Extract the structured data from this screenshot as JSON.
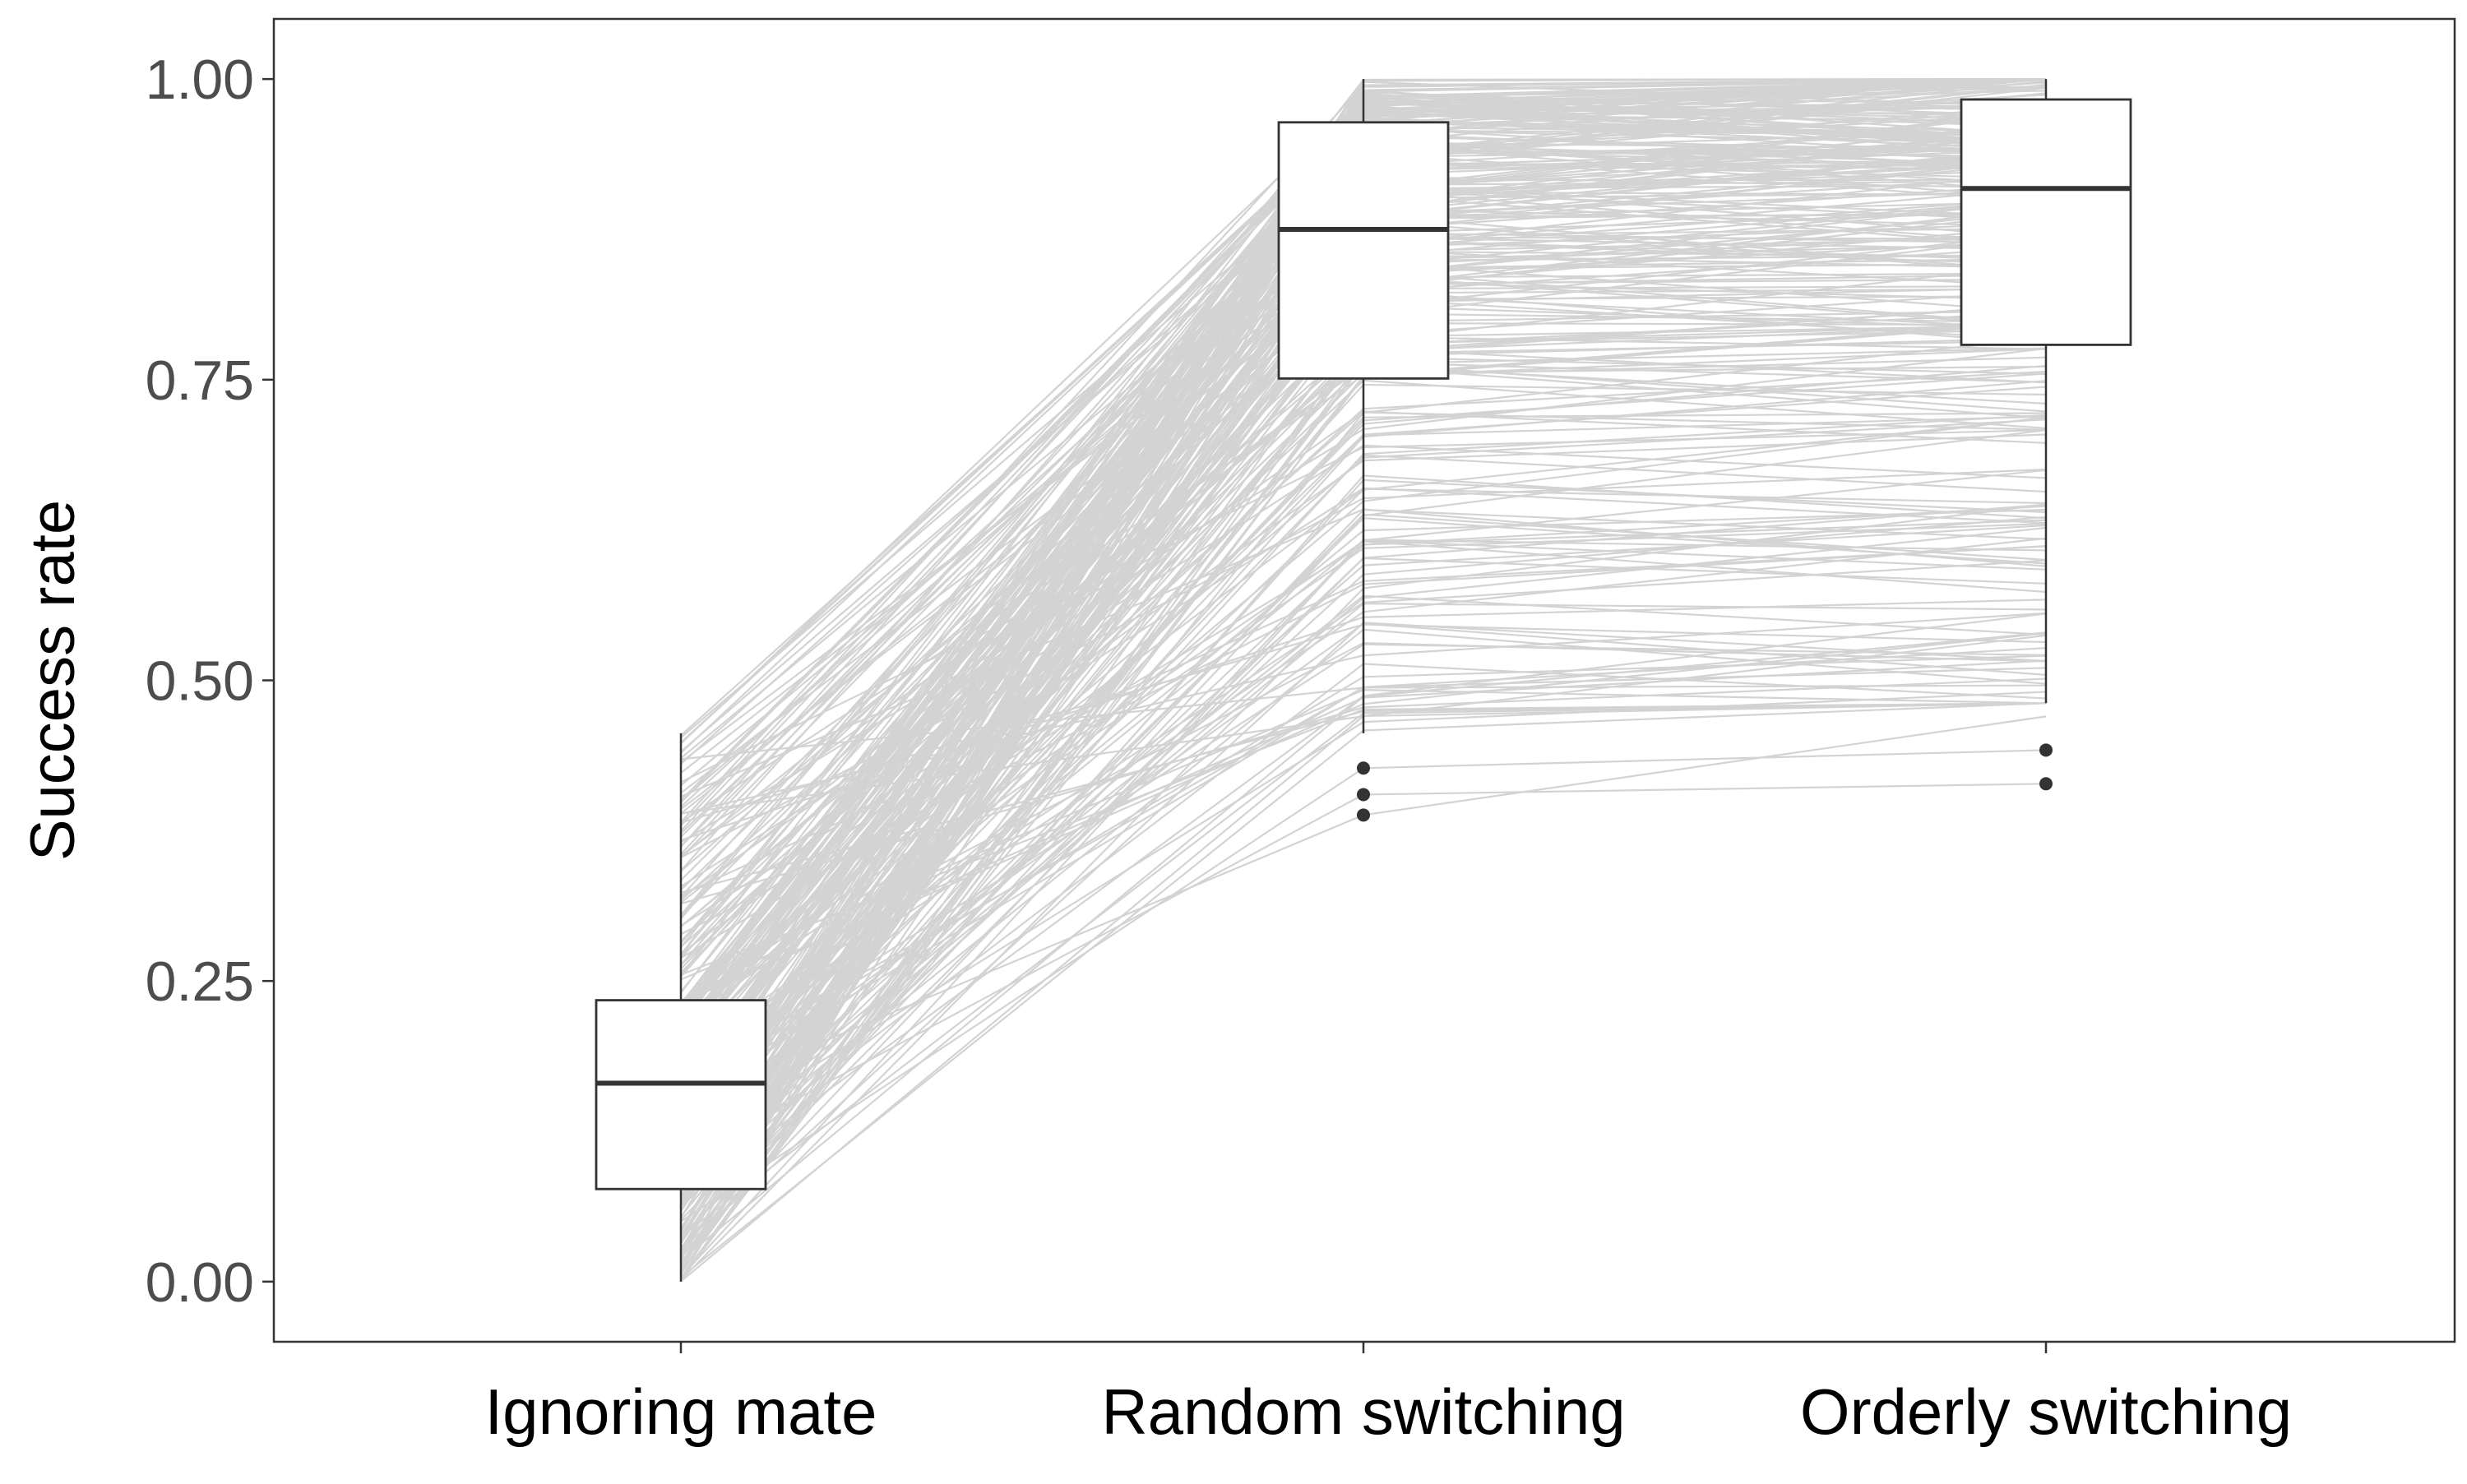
{
  "chart_data": {
    "type": "boxplot",
    "ylabel": "Success rate",
    "xlabel": "",
    "ylim": [
      -0.05,
      1.05
    ],
    "yticks": [
      "0.00",
      "0.25",
      "0.50",
      "0.75",
      "1.00"
    ],
    "grid": false,
    "categories": [
      "Ignoring mate",
      "Random switching",
      "Orderly switching"
    ],
    "boxes": [
      {
        "category": "Ignoring mate",
        "whisker_low": 0.0,
        "q1": 0.077,
        "median": 0.165,
        "q3": 0.234,
        "whisker_high": 0.456,
        "outliers": []
      },
      {
        "category": "Random switching",
        "whisker_low": 0.456,
        "q1": 0.751,
        "median": 0.875,
        "q3": 0.964,
        "whisker_high": 1.0,
        "outliers": [
          0.427,
          0.405,
          0.388
        ]
      },
      {
        "category": "Orderly switching",
        "whisker_low": 0.481,
        "q1": 0.779,
        "median": 0.909,
        "q3": 0.983,
        "whisker_high": 1.0,
        "outliers": [
          0.442,
          0.414
        ]
      }
    ],
    "paired_lines_color": "#d3d3d3",
    "box_fill": "#ffffff",
    "box_stroke": "#333333",
    "paired_subjects": {
      "description_visible": false,
      "count_estimate": 300
    }
  }
}
